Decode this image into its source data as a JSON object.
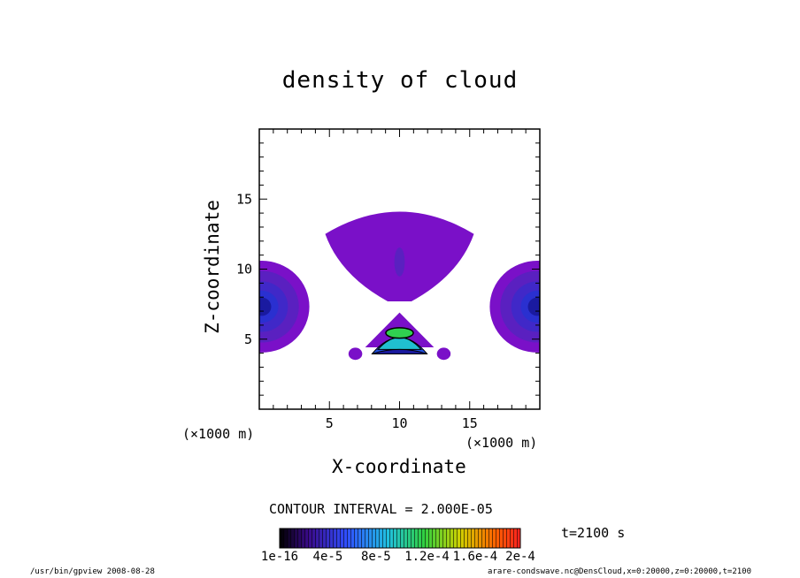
{
  "page": {
    "title": "density of cloud",
    "contour_interval": "CONTOUR INTERVAL = 2.000E-05",
    "time": "t=2100 s",
    "footer_left": "/usr/bin/gpview  2008-08-28",
    "footer_right": "arare-condswave.nc@DensCloud,x=0:20000,z=0:20000,t=2100"
  },
  "chart_data": {
    "type": "heatmap",
    "title": "density of cloud",
    "xlabel": "X-coordinate",
    "ylabel": "Z-coordinate",
    "x_unit": "(×1000 m)",
    "y_unit": "(×1000 m)",
    "xlim": [
      0,
      20
    ],
    "ylim": [
      0,
      20
    ],
    "x_ticks": [
      5,
      10,
      15
    ],
    "y_ticks": [
      5,
      10,
      15
    ],
    "grid": false,
    "colorbar": {
      "tick_labels": [
        "1e-16",
        "4e-5",
        "8e-5",
        "1.2e-4",
        "1.6e-4",
        "2e-4"
      ],
      "range": [
        0,
        0.0002
      ],
      "colors": [
        "#6a0dad",
        "#3a1fb5",
        "#2050ff",
        "#20d0d0",
        "#30d050",
        "#e0e000",
        "#ff8000",
        "#ff0000"
      ]
    },
    "regions": [
      {
        "name": "upper-cloud",
        "x_range": [
          4.7,
          15.3
        ],
        "z_range": [
          7.7,
          15.1
        ],
        "level": "low"
      },
      {
        "name": "left-edge-cloud",
        "x_range": [
          0,
          3.4
        ],
        "z_range": [
          4.8,
          11.1
        ],
        "level": "mid"
      },
      {
        "name": "right-edge-cloud",
        "x_range": [
          16.6,
          20
        ],
        "z_range": [
          4.8,
          11.1
        ],
        "level": "mid"
      },
      {
        "name": "core-cloud",
        "x_range": [
          6.5,
          13.5
        ],
        "z_range": [
          3.8,
          6.9
        ],
        "level": "high"
      }
    ]
  }
}
